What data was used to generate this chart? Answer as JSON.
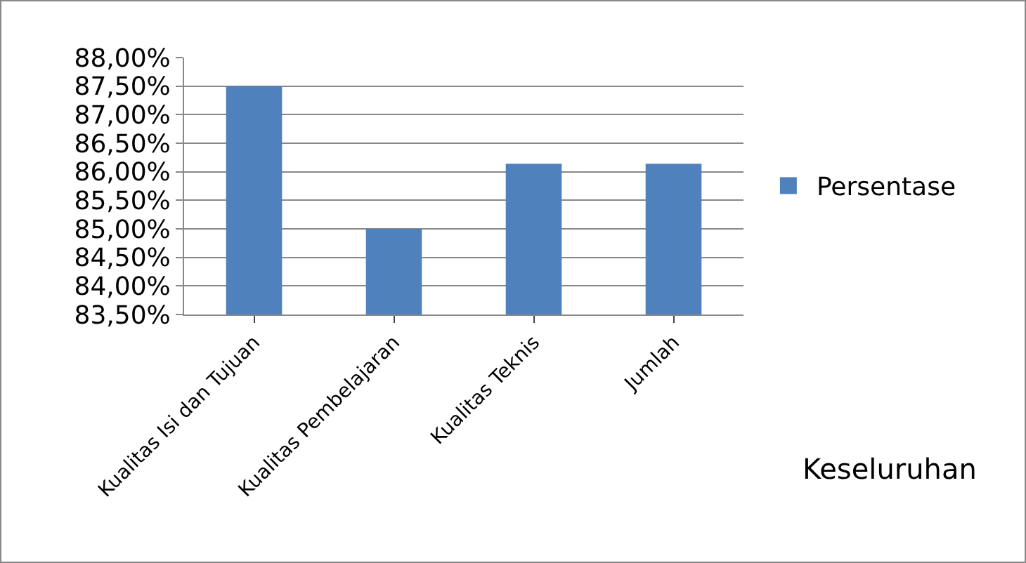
{
  "chart_data": {
    "type": "bar",
    "categories": [
      "Kualitas Isi dan Tujuan",
      "Kualitas Pembelajaran",
      "Kualitas Teknis",
      "Jumlah"
    ],
    "series": [
      {
        "name": "Persentase",
        "color": "#4f81bd",
        "values": [
          87.5,
          85.0,
          86.14,
          86.14
        ]
      }
    ],
    "xlabel": "Keseluruhan",
    "ylim": [
      83.5,
      88
    ],
    "yticks": [
      {
        "value": 83.5,
        "label": "83,50%"
      },
      {
        "value": 84,
        "label": "84,00%"
      },
      {
        "value": 84.5,
        "label": "84,50%"
      },
      {
        "value": 85,
        "label": "85,00%"
      },
      {
        "value": 85.5,
        "label": "85,50%"
      },
      {
        "value": 86,
        "label": "86,00%"
      },
      {
        "value": 86.5,
        "label": "86,50%"
      },
      {
        "value": 87,
        "label": "87,00%"
      },
      {
        "value": 87.5,
        "label": "87,50%"
      },
      {
        "value": 88,
        "label": "88,00%"
      }
    ],
    "grid": "y",
    "legend": "right"
  }
}
